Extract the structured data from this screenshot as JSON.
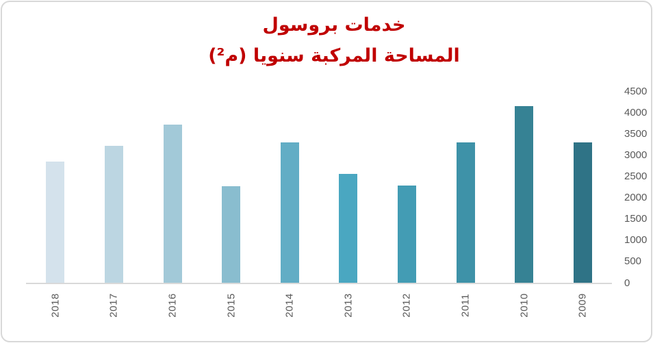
{
  "frame": {
    "background": "#ffffff",
    "border_color": "#d8d8d8"
  },
  "chart_data": {
    "type": "bar",
    "title": "خدمات بروسول المساحة المركبة سنويا (م²)",
    "title_lines": [
      "خدمات بروسول",
      "المساحة المركبة سنويا (م²)"
    ],
    "title_color": "#c00000",
    "direction": "rtl",
    "categories": [
      "2018",
      "2017",
      "2016",
      "2015",
      "2014",
      "2013",
      "2012",
      "2011",
      "2010",
      "2009"
    ],
    "values": [
      2850,
      3210,
      3720,
      2260,
      3300,
      2550,
      2290,
      3300,
      4150,
      3290
    ],
    "bar_colors": [
      "#D4E2EC",
      "#BCD6E2",
      "#A2C9D8",
      "#89BDCF",
      "#62ADC5",
      "#4AA7C1",
      "#439CB4",
      "#3E92A8",
      "#368294",
      "#2F7386"
    ],
    "xlabel": "",
    "ylabel": "",
    "grid": false,
    "legend": false,
    "category_axis": {
      "label_rotation_deg": -90,
      "label_color": "#595959",
      "axis_line_color": "#d9d9d9"
    },
    "value_axis": {
      "side": "right",
      "min": 0,
      "max": 4500,
      "step": 500,
      "tick_labels": [
        "0",
        "500",
        "1000",
        "1500",
        "2000",
        "2500",
        "3000",
        "3500",
        "4000",
        "4500"
      ],
      "label_color": "#595959"
    }
  }
}
